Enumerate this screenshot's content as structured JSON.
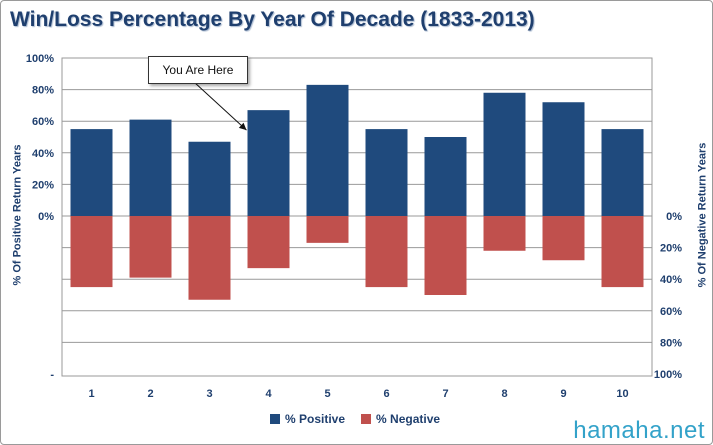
{
  "title": "Win/Loss Percentage By Year Of Decade (1833-2013)",
  "watermark": "hamaha.net",
  "annotation": "You Are Here",
  "colors": {
    "positive": "#1f4a7d",
    "negative": "#c0504d",
    "text": "#1f3f6e",
    "grid": "#999999"
  },
  "chart_data": {
    "type": "bar",
    "title": "Win/Loss Percentage By Year Of Decade (1833-2013)",
    "categories": [
      "1",
      "2",
      "3",
      "4",
      "5",
      "6",
      "7",
      "8",
      "9",
      "10"
    ],
    "series": [
      {
        "name": "% Positive",
        "axis": "left",
        "direction": "up",
        "values": [
          55,
          61,
          47,
          67,
          83,
          55,
          50,
          78,
          72,
          55
        ]
      },
      {
        "name": "% Negative",
        "axis": "right",
        "direction": "down",
        "values": [
          45,
          39,
          53,
          33,
          17,
          45,
          50,
          22,
          28,
          45
        ]
      }
    ],
    "ylabel_left": "% Of Positive Return Years",
    "ylabel_right": "% Of Negative Return Years",
    "left_ticks": [
      "100%",
      "80%",
      "60%",
      "40%",
      "20%",
      "0%",
      "",
      "",
      "",
      "",
      "-"
    ],
    "right_ticks": [
      "0%",
      "20%",
      "40%",
      "60%",
      "80%",
      "100%"
    ],
    "ylim_left": [
      0,
      100
    ],
    "ylim_right": [
      0,
      100
    ],
    "grid": true,
    "legend": "bottom",
    "annotation": {
      "text": "You Are Here",
      "category": "4"
    }
  }
}
